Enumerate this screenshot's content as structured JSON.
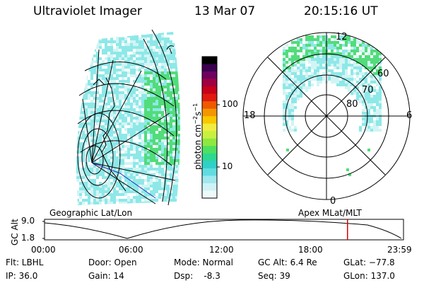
{
  "header": {
    "title": "Ultraviolet Imager",
    "date": "13 Mar 07",
    "time": "20:15:16 UT"
  },
  "colorbar": {
    "unit_label": "photon cm",
    "exp1": "−2",
    "mid": "s",
    "exp2": "−1",
    "ticks": [
      "100",
      "10"
    ],
    "colors": [
      "#000000",
      "#3a0050",
      "#700060",
      "#a00040",
      "#c8001a",
      "#e01a10",
      "#ee5a00",
      "#f49600",
      "#f8c800",
      "#f0ec40",
      "#c8f040",
      "#8ee840",
      "#4ee060",
      "#2ed890",
      "#30d0c8",
      "#60dce0",
      "#9ee8ee",
      "#cff2f4",
      "#eef9fa"
    ]
  },
  "polar": {
    "labels": {
      "top": "12",
      "left": "18",
      "right": "6",
      "bottom": "0",
      "r60": "60",
      "r70": "70",
      "r80": "80"
    }
  },
  "panel_labels": {
    "left": "Geographic Lat/Lon",
    "right": "Apex MLat/MLT"
  },
  "timeline": {
    "axis_label": "GC Alt",
    "y_max": "9.0",
    "y_min": "1.8",
    "ticks": [
      "00:00",
      "06:00",
      "12:00",
      "18:00",
      "23:59"
    ],
    "current_time_fraction": 0.844,
    "current_color": "#e00000"
  },
  "info": {
    "row1": {
      "flt": "Flt: LBHL",
      "door": "Door: Open",
      "mode": "Mode: Normal",
      "gcalt": "GC Alt: 6.4 Re",
      "glat": "GLat: −77.8"
    },
    "row2": {
      "ip": "IP: 36.0",
      "gain": "Gain: 14",
      "dsp": "Dsp:    -8.3",
      "seq": "Seq: 39",
      "glon": "GLon: 137.0"
    }
  },
  "colors": {
    "aurora_main": "#8ee8e8",
    "aurora_bright": "#52dc7a",
    "aurora_pale": "#d2f4f4",
    "coast_line": "#2030c0"
  }
}
